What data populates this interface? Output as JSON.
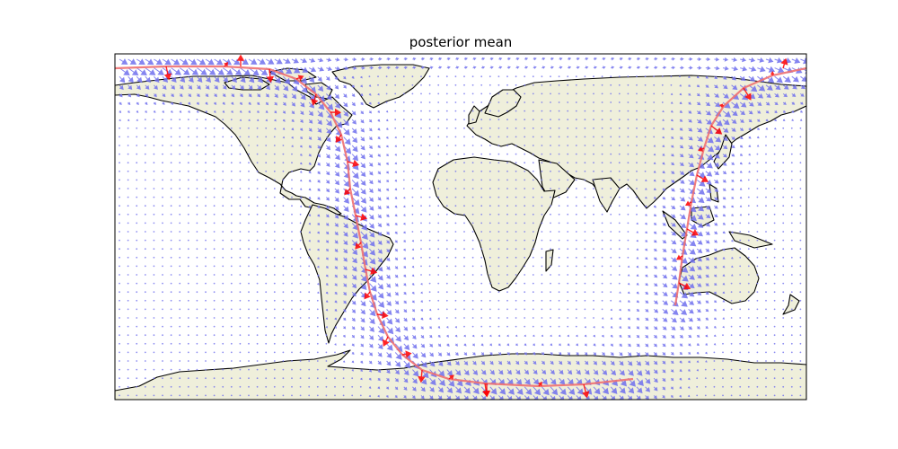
{
  "title": "posterior mean",
  "colors": {
    "land": "#efefdb",
    "coastline": "#000000",
    "ocean": "#ffffff",
    "field_arrows": "#7070ee",
    "track_line": "#f07070",
    "track_arrows": "#ff0000"
  },
  "map": {
    "projection": "plate-carree",
    "lon_range": [
      -180,
      180
    ],
    "lat_range": [
      -90,
      90
    ]
  }
}
